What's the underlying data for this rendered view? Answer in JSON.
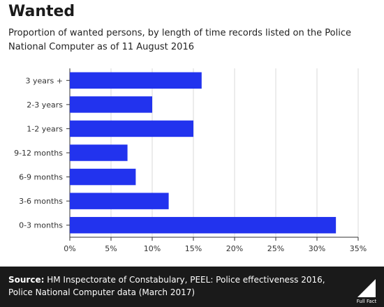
{
  "header": {
    "title": "Wanted",
    "subtitle": "Proportion of wanted persons, by length of time records listed on the Police National Computer as of 11 August 2016"
  },
  "footer": {
    "source_label": "Source:",
    "source_text": " HM Inspectorate of Constabulary, PEEL: Police effectiveness 2016, Police National Computer data (March 2017)",
    "logo_text": "Full Fact"
  },
  "colors": {
    "bar": "#2233ee",
    "grid": "#d9d9d9",
    "footer": "#1a1a1a"
  },
  "chart_data": {
    "type": "bar",
    "orientation": "horizontal",
    "categories": [
      "3 years +",
      "2-3 years",
      "1-2 years",
      "9-12 months",
      "6-9 months",
      "3-6 months",
      "0-3 months"
    ],
    "values": [
      16,
      10,
      15,
      7,
      8,
      12,
      32.3
    ],
    "xlim": [
      0,
      35
    ],
    "xticks": [
      0,
      5,
      10,
      15,
      20,
      25,
      30,
      35
    ],
    "tick_suffix": "%",
    "grid": true
  }
}
